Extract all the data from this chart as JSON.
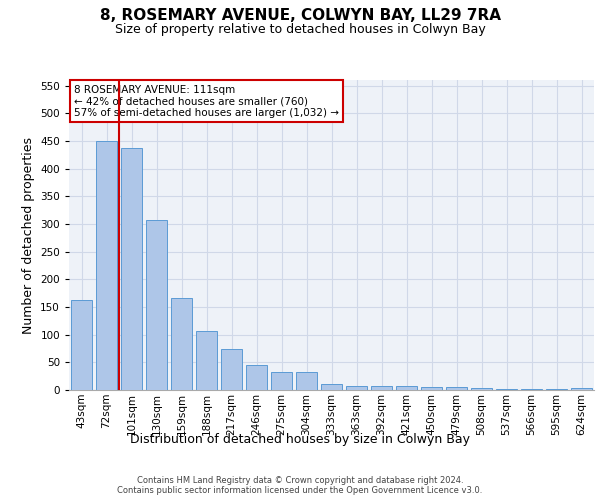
{
  "title": "8, ROSEMARY AVENUE, COLWYN BAY, LL29 7RA",
  "subtitle": "Size of property relative to detached houses in Colwyn Bay",
  "xlabel": "Distribution of detached houses by size in Colwyn Bay",
  "ylabel": "Number of detached properties",
  "categories": [
    "43sqm",
    "72sqm",
    "101sqm",
    "130sqm",
    "159sqm",
    "188sqm",
    "217sqm",
    "246sqm",
    "275sqm",
    "304sqm",
    "333sqm",
    "363sqm",
    "392sqm",
    "421sqm",
    "450sqm",
    "479sqm",
    "508sqm",
    "537sqm",
    "566sqm",
    "595sqm",
    "624sqm"
  ],
  "values": [
    163,
    450,
    437,
    307,
    166,
    106,
    74,
    45,
    32,
    32,
    10,
    8,
    8,
    7,
    5,
    5,
    3,
    2,
    2,
    2,
    4
  ],
  "bar_color": "#aec6e8",
  "bar_edge_color": "#5b9bd5",
  "grid_color": "#d0d8e8",
  "background_color": "#eef2f8",
  "vline_x_index": 2,
  "vline_color": "#cc0000",
  "annotation_line1": "8 ROSEMARY AVENUE: 111sqm",
  "annotation_line2": "← 42% of detached houses are smaller (760)",
  "annotation_line3": "57% of semi-detached houses are larger (1,032) →",
  "annotation_box_color": "#ffffff",
  "annotation_box_edge": "#cc0000",
  "footer": "Contains HM Land Registry data © Crown copyright and database right 2024.\nContains public sector information licensed under the Open Government Licence v3.0.",
  "ylim": [
    0,
    560
  ],
  "yticks": [
    0,
    50,
    100,
    150,
    200,
    250,
    300,
    350,
    400,
    450,
    500,
    550
  ],
  "title_fontsize": 11,
  "subtitle_fontsize": 9,
  "ylabel_fontsize": 9,
  "xlabel_fontsize": 9,
  "tick_fontsize": 7.5,
  "annotation_fontsize": 7.5,
  "footer_fontsize": 6
}
